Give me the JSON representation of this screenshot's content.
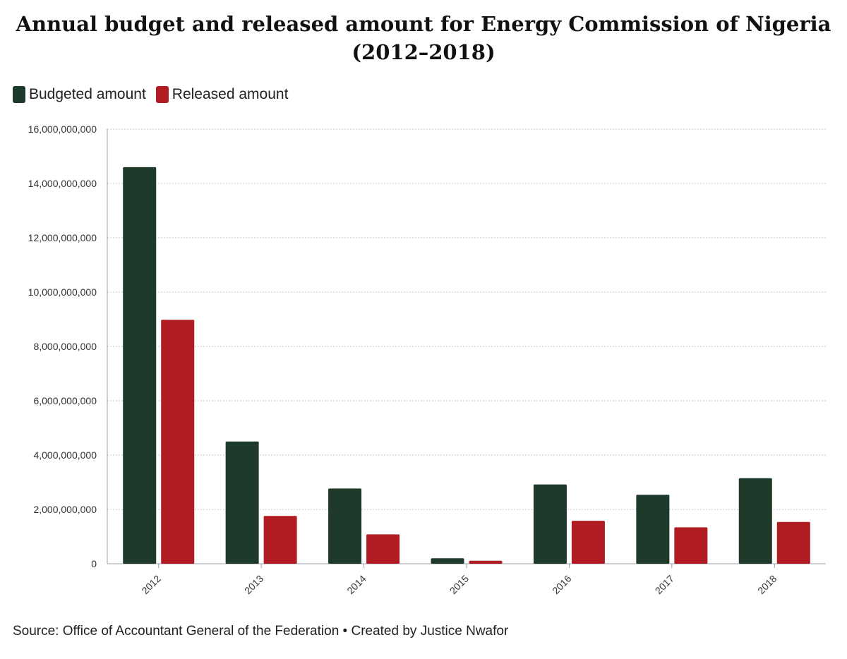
{
  "colors": {
    "budgeted": "#1e3a2a",
    "released": "#b01c22",
    "grid": "#c4cad3",
    "axis": "#9aa1aa"
  },
  "legend": {
    "budgeted_label": "Budgeted amount",
    "released_label": "Released amount"
  },
  "source": "Source: Office of Accountant General of the Federation • Created by Justice Nwafor",
  "chart_data": {
    "type": "bar",
    "title_line1": "Annual budget and released amount for Energy Commission of Nigeria",
    "title_line2": "(2012–2018)",
    "xlabel": "",
    "ylabel": "",
    "categories": [
      "2012",
      "2013",
      "2014",
      "2015",
      "2016",
      "2017",
      "2018"
    ],
    "series": [
      {
        "name": "Budgeted amount",
        "values": [
          14600000000,
          4500000000,
          2770000000,
          200000000,
          2920000000,
          2540000000,
          3150000000
        ]
      },
      {
        "name": "Released amount",
        "values": [
          8980000000,
          1760000000,
          1080000000,
          110000000,
          1580000000,
          1340000000,
          1540000000
        ]
      }
    ],
    "ylim": [
      0,
      16000000000
    ],
    "yticks": [
      0,
      2000000000,
      4000000000,
      6000000000,
      8000000000,
      10000000000,
      12000000000,
      14000000000,
      16000000000
    ],
    "ytick_labels": [
      "0",
      "2,000,000,000",
      "4,000,000,000",
      "6,000,000,000",
      "8,000,000,000",
      "10,000,000,000",
      "12,000,000,000",
      "14,000,000,000",
      "16,000,000,000"
    ],
    "grid": true,
    "legend_position": "top-left"
  }
}
